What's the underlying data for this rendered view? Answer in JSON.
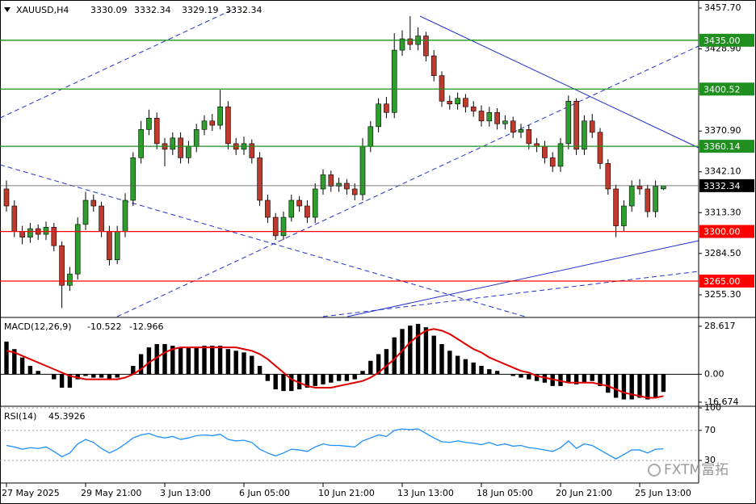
{
  "chart_data": [
    {
      "type": "candlestick",
      "symbol": "XAUUSD,H4",
      "categories": [
        "27 May 2025",
        null,
        null,
        null,
        null,
        null,
        null,
        null,
        null,
        null,
        "29 May 21:00",
        null,
        null,
        null,
        null,
        null,
        null,
        null,
        null,
        null,
        "3 Jun 13:00",
        null,
        null,
        null,
        null,
        null,
        null,
        null,
        null,
        null,
        "6 Jun 05:00",
        null,
        null,
        null,
        null,
        null,
        null,
        null,
        null,
        null,
        "10 Jun 21:00",
        null,
        null,
        null,
        null,
        null,
        null,
        null,
        null,
        null,
        "13 Jun 13:00",
        null,
        null,
        null,
        null,
        null,
        null,
        null,
        null,
        null,
        "18 Jun 05:00",
        null,
        null,
        null,
        null,
        null,
        null,
        null,
        null,
        null,
        "20 Jun 21:00",
        null,
        null,
        null,
        null,
        null,
        null,
        null,
        null,
        null,
        "25 Jun 13:00",
        null,
        null,
        null
      ],
      "open": [
        3330,
        3318,
        3300,
        3296,
        3302,
        3298,
        3303,
        3290,
        3262,
        3270,
        3305,
        3322,
        3318,
        3300,
        3280,
        3300,
        3322,
        3352,
        3372,
        3380,
        3362,
        3358,
        3366,
        3352,
        3360,
        3372,
        3378,
        3375,
        3388,
        3362,
        3358,
        3362,
        3352,
        3322,
        3310,
        3297,
        3310,
        3322,
        3318,
        3310,
        3330,
        3340,
        3332,
        3334,
        3330,
        3326,
        3360,
        3374,
        3390,
        3384,
        3428,
        3436,
        3432,
        3438,
        3424,
        3410,
        3392,
        3390,
        3394,
        3388,
        3385,
        3378,
        3384,
        3376,
        3378,
        3370,
        3372,
        3362,
        3360,
        3352,
        3346,
        3362,
        3392,
        3358,
        3378,
        3370,
        3348,
        3330,
        3304,
        3318,
        3332,
        3330,
        3314,
        3330.09
      ],
      "high": [
        3336,
        3322,
        3304,
        3306,
        3305,
        3307,
        3306,
        3293,
        3275,
        3310,
        3328,
        3326,
        3321,
        3304,
        3304,
        3327,
        3356,
        3378,
        3386,
        3384,
        3366,
        3370,
        3370,
        3364,
        3376,
        3382,
        3383,
        3400,
        3392,
        3366,
        3367,
        3365,
        3356,
        3326,
        3313,
        3314,
        3326,
        3325,
        3322,
        3334,
        3344,
        3343,
        3338,
        3337,
        3334,
        3366,
        3378,
        3394,
        3395,
        3440,
        3442,
        3452,
        3444,
        3441,
        3428,
        3413,
        3396,
        3398,
        3397,
        3392,
        3389,
        3388,
        3387,
        3382,
        3381,
        3376,
        3375,
        3366,
        3364,
        3356,
        3366,
        3396,
        3394,
        3382,
        3383,
        3373,
        3351,
        3333,
        3322,
        3336,
        3337,
        3333,
        3336,
        3332.34
      ],
      "low": [
        3314,
        3296,
        3291,
        3292,
        3294,
        3294,
        3286,
        3246,
        3258,
        3266,
        3301,
        3314,
        3296,
        3276,
        3277,
        3296,
        3318,
        3348,
        3368,
        3358,
        3346,
        3354,
        3348,
        3348,
        3356,
        3368,
        3371,
        3372,
        3358,
        3354,
        3354,
        3348,
        3318,
        3306,
        3294,
        3294,
        3307,
        3314,
        3306,
        3306,
        3326,
        3328,
        3328,
        3326,
        3322,
        3322,
        3356,
        3370,
        3380,
        3380,
        3424,
        3428,
        3428,
        3420,
        3406,
        3388,
        3386,
        3386,
        3384,
        3381,
        3374,
        3374,
        3372,
        3372,
        3366,
        3366,
        3358,
        3356,
        3348,
        3342,
        3342,
        3358,
        3354,
        3354,
        3366,
        3344,
        3326,
        3296,
        3300,
        3314,
        3326,
        3310,
        3310,
        3329.19
      ],
      "close": [
        3318,
        3300,
        3296,
        3302,
        3298,
        3303,
        3290,
        3262,
        3270,
        3305,
        3322,
        3318,
        3300,
        3280,
        3300,
        3322,
        3352,
        3372,
        3380,
        3362,
        3358,
        3366,
        3352,
        3360,
        3372,
        3378,
        3375,
        3388,
        3362,
        3358,
        3362,
        3352,
        3322,
        3310,
        3297,
        3310,
        3322,
        3318,
        3310,
        3330,
        3340,
        3332,
        3334,
        3330,
        3326,
        3360,
        3374,
        3390,
        3384,
        3428,
        3436,
        3432,
        3438,
        3424,
        3410,
        3392,
        3390,
        3394,
        3388,
        3385,
        3378,
        3384,
        3376,
        3378,
        3370,
        3372,
        3362,
        3360,
        3352,
        3346,
        3362,
        3392,
        3358,
        3378,
        3370,
        3348,
        3330,
        3304,
        3318,
        3332,
        3330,
        3314,
        3332,
        3332.34
      ],
      "up_color": "#2f9e2f",
      "down_color": "#c0392b",
      "last_color": "#000000",
      "ylim": [
        3239.9,
        3463.4
      ],
      "yticks": [
        {
          "value": 3457.7,
          "label": "3457.70"
        },
        {
          "value": 3428.9,
          "label": "3428.90"
        },
        {
          "value": 3370.9,
          "label": "3370.90"
        },
        {
          "value": 3342.1,
          "label": "3342.10"
        },
        {
          "value": 3313.3,
          "label": "3313.30"
        },
        {
          "value": 3284.5,
          "label": "3284.50"
        },
        {
          "value": 3255.3,
          "label": "3255.30"
        }
      ],
      "levels": [
        {
          "value": 3435,
          "label": "3435.00",
          "color": "#1f8f1f"
        },
        {
          "value": 3400.52,
          "label": "3400.52",
          "color": "#1f8f1f"
        },
        {
          "value": 3360.14,
          "label": "3360.14",
          "color": "#1f8f1f"
        },
        {
          "value": 3300,
          "label": "3300.00",
          "color": "#ff0000"
        },
        {
          "value": 3265,
          "label": "3265.00",
          "color": "#ff0000"
        }
      ]
    },
    {
      "type": "macd",
      "title": "MACD(12,26,9)",
      "histogram": [
        19.5,
        15,
        10,
        5,
        2,
        0,
        -3,
        -8,
        -8,
        -3,
        -1,
        -2,
        -2,
        -3,
        -2,
        0,
        5,
        12,
        16,
        18,
        18,
        17,
        16,
        16,
        16,
        17,
        17,
        17,
        15,
        14,
        13,
        11,
        5,
        -4,
        -9,
        -10,
        -10,
        -9,
        -8,
        -7,
        -6,
        -5,
        -4,
        -4,
        -3,
        2,
        8,
        12,
        15,
        22,
        27,
        29,
        30,
        28,
        23,
        18,
        14,
        11,
        9,
        7,
        5,
        3,
        2,
        0,
        -1,
        -2,
        -3,
        -4,
        -5,
        -7,
        -7,
        -5,
        -6,
        -5,
        -4,
        -7,
        -11,
        -14,
        -15,
        -15,
        -14,
        -15,
        -14,
        -10.522
      ],
      "signal": [
        14,
        13,
        11,
        9,
        7,
        5,
        3,
        1,
        -1,
        -2,
        -3,
        -3,
        -3,
        -3,
        -3,
        -2,
        0,
        3,
        7,
        10,
        13,
        15,
        16,
        16,
        16,
        16,
        16,
        16,
        16,
        16,
        15,
        14,
        12,
        9,
        5,
        1,
        -3,
        -5,
        -7,
        -8,
        -8,
        -8,
        -7,
        -6,
        -5,
        -4,
        -2,
        1,
        5,
        9,
        14,
        19,
        23,
        26,
        27,
        26,
        24,
        21,
        18,
        15,
        13,
        10,
        8,
        6,
        4,
        2,
        1,
        -1,
        -2,
        -3,
        -4,
        -5,
        -5,
        -5,
        -5,
        -6,
        -7,
        -9,
        -11,
        -12,
        -13,
        -14,
        -14,
        -12.966
      ],
      "histogram_color": "#000000",
      "signal_color": "#e00000",
      "ylim": [
        -18.6,
        33.4
      ],
      "yticks": [
        28.617,
        {
          "value": 0,
          "label": "0.00"
        },
        -16.674
      ]
    },
    {
      "type": "line",
      "title": "RSI(14)",
      "values": [
        50,
        48,
        45,
        47,
        46,
        48,
        42,
        35,
        40,
        52,
        58,
        54,
        46,
        40,
        45,
        52,
        60,
        64,
        66,
        62,
        60,
        62,
        58,
        60,
        63,
        64,
        63,
        65,
        58,
        56,
        57,
        54,
        45,
        40,
        36,
        40,
        45,
        44,
        42,
        48,
        52,
        50,
        50,
        49,
        48,
        56,
        60,
        64,
        62,
        70,
        72,
        71,
        72,
        66,
        60,
        55,
        54,
        56,
        54,
        53,
        51,
        54,
        50,
        52,
        49,
        50,
        47,
        46,
        44,
        42,
        47,
        56,
        46,
        52,
        50,
        44,
        38,
        32,
        38,
        44,
        44,
        40,
        45,
        45.3926
      ],
      "color": "#1e90ff",
      "ylim": [
        0,
        100
      ],
      "yticks": [
        100,
        70,
        30
      ],
      "grid": true
    }
  ],
  "watermark": "FXTM富拓"
}
